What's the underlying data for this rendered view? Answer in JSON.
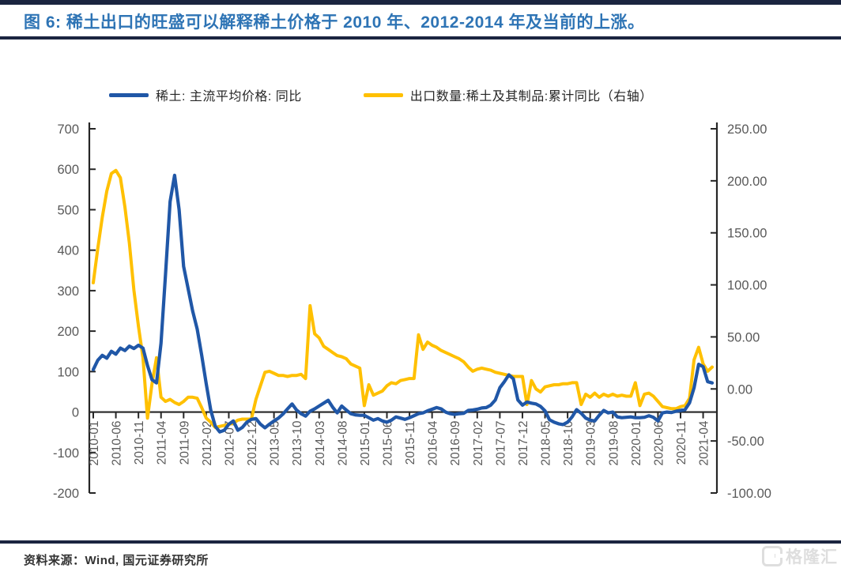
{
  "title": "图 6: 稀土出口的旺盛可以解释稀土价格于 2010 年、2012-2014 年及当前的上涨。",
  "footer": {
    "source": "资料来源：Wind, 国元证券研究所"
  },
  "watermark": {
    "brand": "格隆汇"
  },
  "colors": {
    "title": "#2E74B5",
    "rule": "#1B2540",
    "price_line": "#2057A7",
    "export_line": "#FFC000",
    "axis": "#262626",
    "tick_label": "#595959",
    "legend_text": "#262626",
    "footer_text": "#333333",
    "watermark": "#DEDEDE"
  },
  "chart_data": {
    "type": "line",
    "title": "",
    "grid": false,
    "legend_position": "top",
    "x_start": "2010-01",
    "x_end": "2021-06",
    "x_label_every": 5,
    "x_labels": [
      "2010-01",
      "2010-06",
      "2010-11",
      "2011-04",
      "2011-09",
      "2012-02",
      "2012-07",
      "2012-12",
      "2013-05",
      "2013-10",
      "2014-03",
      "2014-08",
      "2015-01",
      "2015-06",
      "2015-11",
      "2016-04",
      "2016-09",
      "2017-02",
      "2017-07",
      "2017-12",
      "2018-05",
      "2018-10",
      "2019-03",
      "2019-08",
      "2020-01",
      "2020-06",
      "2020-11",
      "2021-04"
    ],
    "left_axis": {
      "range": [
        -200,
        700
      ],
      "ticks": [
        700,
        600,
        500,
        400,
        300,
        200,
        100,
        0,
        -100,
        -200
      ]
    },
    "right_axis": {
      "range": [
        -100,
        250
      ],
      "ticks": [
        "250.00",
        "200.00",
        "150.00",
        "100.00",
        "50.00",
        "0.00",
        "-50.00",
        "-100.00"
      ]
    },
    "series": [
      {
        "name": "稀土: 主流平均价格: 同比",
        "axis": "left",
        "color": "#2057A7",
        "values": [
          105,
          128,
          140,
          133,
          150,
          143,
          158,
          152,
          163,
          157,
          165,
          158,
          115,
          80,
          72,
          170,
          340,
          520,
          585,
          500,
          360,
          305,
          250,
          205,
          140,
          70,
          5,
          -35,
          -49,
          -45,
          -30,
          -22,
          -45,
          -38,
          -25,
          -18,
          -16,
          -30,
          -39,
          -30,
          -22,
          -15,
          -5,
          8,
          20,
          5,
          -4,
          -10,
          2,
          8,
          15,
          22,
          29,
          12,
          -2,
          15,
          5,
          -4,
          -7,
          -8,
          -8,
          -14,
          -20,
          -16,
          -22,
          -25,
          -20,
          -12,
          -15,
          -18,
          -14,
          -9,
          -4,
          -2,
          3,
          7,
          11,
          8,
          0,
          -4,
          -6,
          -4,
          -3,
          4,
          5,
          7,
          10,
          11,
          17,
          30,
          60,
          75,
          92,
          82,
          30,
          17,
          25,
          22,
          20,
          14,
          3,
          -19,
          -25,
          -29,
          -31,
          -25,
          -12,
          6,
          -3,
          -15,
          -20,
          -22,
          -8,
          4,
          -2,
          0,
          -12,
          -14,
          -13,
          -12,
          -14,
          -14,
          -13,
          -9,
          -13,
          -22,
          -2,
          0,
          -1,
          2,
          4,
          6,
          23,
          60,
          118,
          112,
          75,
          72
        ]
      },
      {
        "name": "出口数量:稀土及其制品:累计同比（右轴）",
        "axis": "right",
        "color": "#FFC000",
        "values": [
          102,
          135,
          165,
          190,
          207,
          210,
          203,
          175,
          140,
          95,
          60,
          30,
          -28,
          5,
          30,
          -8,
          -12,
          -10,
          -13,
          -15,
          -12,
          -8,
          -8,
          -9,
          -18,
          -28,
          -32,
          -37,
          -36,
          -35,
          -34,
          -33,
          -30,
          -29,
          -29,
          -29,
          -10,
          3,
          16,
          17,
          15,
          13,
          13,
          12,
          13,
          13,
          14,
          10,
          80,
          53,
          49,
          41,
          38,
          35,
          32,
          31,
          29,
          24,
          22,
          20,
          -16,
          4,
          -6,
          -4,
          -2,
          3,
          6,
          5,
          8,
          9,
          10,
          10,
          52,
          38,
          45,
          42,
          40,
          37,
          35,
          33,
          31,
          29,
          26,
          21,
          17,
          19,
          20,
          19,
          18,
          16,
          15,
          14,
          13,
          12,
          12,
          12,
          -15,
          8,
          0,
          -3,
          2,
          3,
          4,
          4,
          5,
          5,
          6,
          6,
          -15,
          -5,
          -8,
          -4,
          -8,
          -5,
          -7,
          -5,
          -7,
          -6,
          -7,
          -7,
          6,
          -16,
          -5,
          -4,
          -7,
          -12,
          -17,
          -18,
          -19,
          -19,
          -17,
          -16,
          -9,
          28,
          40,
          24,
          17,
          21
        ]
      }
    ]
  }
}
